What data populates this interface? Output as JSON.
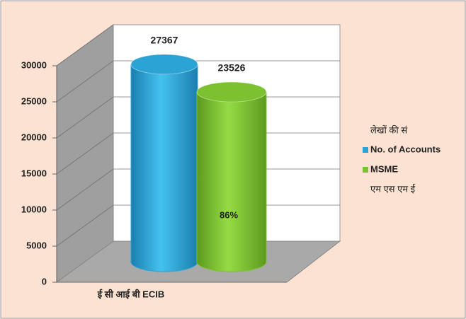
{
  "chart_data": {
    "type": "bar",
    "categories": [
      "ई सी आई बी ECIB"
    ],
    "series": [
      {
        "name": "No. of Accounts",
        "name_hindi": "लेखों की सं",
        "color": "#2ba3d4",
        "values": [
          27367
        ]
      },
      {
        "name": "MSME",
        "name_hindi": "एम एस एम ई",
        "color": "#7cc230",
        "values": [
          23526
        ]
      }
    ],
    "annotation": "86%",
    "ylim": [
      0,
      30000
    ],
    "yticks": [
      0,
      5000,
      10000,
      15000,
      20000,
      25000,
      30000
    ],
    "grid": true,
    "legend": "right"
  }
}
